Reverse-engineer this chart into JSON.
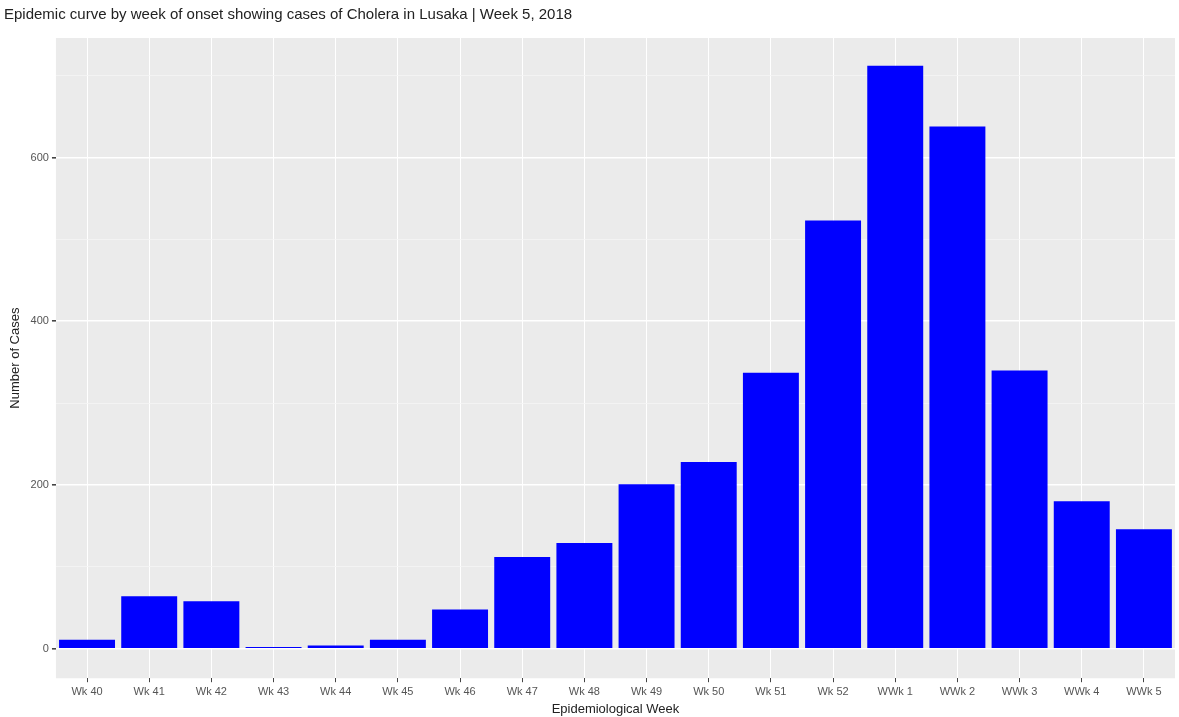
{
  "chart_data": {
    "type": "bar",
    "title": "Epidemic curve by week of onset showing cases of Cholera in Lusaka | Week 5, 2018",
    "xlabel": "Epidemiological Week",
    "ylabel": "Number of Cases",
    "categories": [
      "Wk 40",
      "Wk 41",
      "Wk 42",
      "Wk 43",
      "Wk 44",
      "Wk 45",
      "Wk 46",
      "Wk 47",
      "Wk 48",
      "Wk 49",
      "Wk 50",
      "Wk 51",
      "Wk 52",
      "WWk 1",
      "WWk 2",
      "WWk 3",
      "WWk 4",
      "WWk 5"
    ],
    "values": [
      11,
      64,
      58,
      2,
      4,
      11,
      48,
      112,
      129,
      201,
      228,
      337,
      523,
      712,
      638,
      340,
      180,
      146
    ],
    "color": "#0000ff",
    "ylim": [
      -36,
      746
    ],
    "yticks": [
      0,
      {
        "value": 100,
        "label": null
      },
      200,
      {
        "value": 300,
        "label": null
      },
      400,
      {
        "value": 500,
        "label": null
      },
      600,
      {
        "value": 700,
        "label": null
      }
    ],
    "grid": true,
    "legend": false
  }
}
